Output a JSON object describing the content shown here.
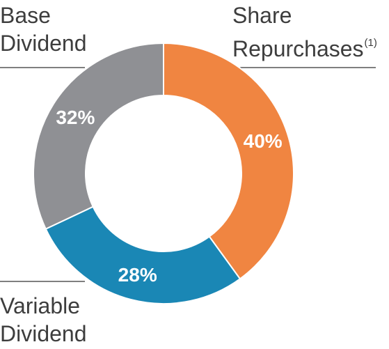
{
  "chart_data": {
    "type": "pie",
    "donut": true,
    "categories": [
      "Share Repurchases",
      "Variable Dividend",
      "Base Dividend"
    ],
    "values": [
      40,
      28,
      32
    ],
    "value_labels": [
      "40%",
      "28%",
      "32%"
    ],
    "colors": [
      "#f08541",
      "#1a87b5",
      "#8f9094"
    ],
    "title": "",
    "legend": "none"
  },
  "labels": {
    "share_repurchases": {
      "line1": "Share",
      "line2": "Repurchases",
      "footnote": "(1)"
    },
    "base_dividend": {
      "line1": "Base",
      "line2": "Dividend"
    },
    "variable_dividend": {
      "line1": "Variable",
      "line2": "Dividend"
    }
  }
}
